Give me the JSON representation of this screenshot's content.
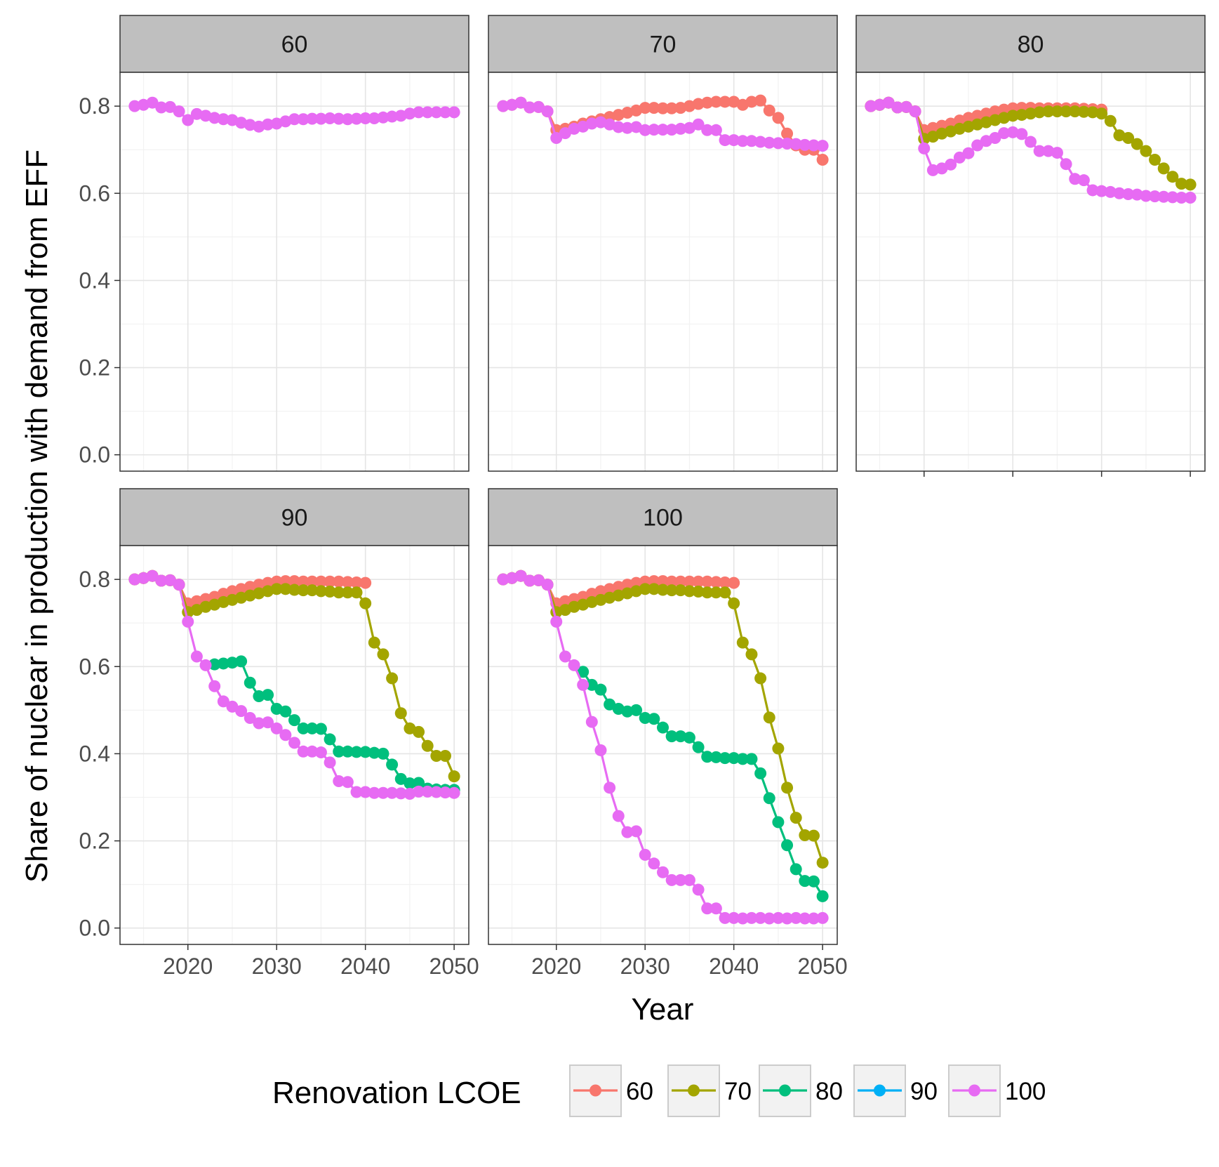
{
  "chart_data": {
    "type": "line",
    "facet_by": "panel",
    "panels": [
      "60",
      "70",
      "80",
      "90",
      "100"
    ],
    "xlabel": "Year",
    "ylabel": "Share of nuclear in production with demand from EFF",
    "xlim": [
      2014,
      2050
    ],
    "ylim": [
      0.0,
      0.8
    ],
    "xticks": [
      "2020",
      "2030",
      "2040",
      "2050"
    ],
    "yticks": [
      "0.0",
      "0.2",
      "0.4",
      "0.6",
      "0.8"
    ],
    "grid": true,
    "legend": {
      "title": "Renovation LCOE",
      "position": "bottom",
      "entries": [
        "60",
        "70",
        "80",
        "90",
        "100"
      ]
    },
    "colors": {
      "60": "#F8766D",
      "70": "#A3A500",
      "80": "#00BF7D",
      "90": "#00B0F6",
      "100": "#E76BF3"
    },
    "years": [
      2014,
      2015,
      2016,
      2017,
      2018,
      2019,
      2020,
      2021,
      2022,
      2023,
      2024,
      2025,
      2026,
      2027,
      2028,
      2029,
      2030,
      2031,
      2032,
      2033,
      2034,
      2035,
      2036,
      2037,
      2038,
      2039,
      2040,
      2041,
      2042,
      2043,
      2044,
      2045,
      2046,
      2047,
      2048,
      2049,
      2050
    ],
    "facets": [
      {
        "panel": "60",
        "series": [
          {
            "name": "100",
            "values": [
              0.8,
              0.803,
              0.808,
              0.797,
              0.798,
              0.788,
              0.768,
              0.782,
              0.778,
              0.773,
              0.77,
              0.768,
              0.762,
              0.757,
              0.753,
              0.758,
              0.76,
              0.765,
              0.77,
              0.77,
              0.771,
              0.771,
              0.772,
              0.771,
              0.77,
              0.771,
              0.772,
              0.772,
              0.774,
              0.776,
              0.778,
              0.783,
              0.786,
              0.786,
              0.786,
              0.786,
              0.786
            ]
          }
        ]
      },
      {
        "panel": "70",
        "series": [
          {
            "name": "60",
            "values": [
              0.8,
              0.803,
              0.808,
              0.797,
              0.798,
              0.788,
              0.745,
              0.748,
              0.753,
              0.76,
              0.765,
              0.77,
              0.775,
              0.78,
              0.785,
              0.79,
              0.796,
              0.796,
              0.795,
              0.795,
              0.796,
              0.8,
              0.805,
              0.808,
              0.81,
              0.81,
              0.81,
              0.803,
              0.81,
              0.813,
              0.79,
              0.773,
              0.737,
              0.71,
              0.7,
              0.7,
              0.677
            ]
          },
          {
            "name": "100",
            "values": [
              0.8,
              0.803,
              0.808,
              0.797,
              0.798,
              0.788,
              0.727,
              0.738,
              0.748,
              0.753,
              0.76,
              0.763,
              0.758,
              0.752,
              0.75,
              0.752,
              0.745,
              0.746,
              0.746,
              0.746,
              0.748,
              0.75,
              0.758,
              0.745,
              0.745,
              0.722,
              0.722,
              0.72,
              0.72,
              0.718,
              0.716,
              0.715,
              0.714,
              0.713,
              0.711,
              0.71,
              0.709
            ]
          }
        ]
      },
      {
        "panel": "80",
        "series": [
          {
            "name": "60",
            "values": [
              0.8,
              0.803,
              0.808,
              0.797,
              0.798,
              0.788,
              0.745,
              0.75,
              0.755,
              0.76,
              0.767,
              0.773,
              0.778,
              0.783,
              0.788,
              0.792,
              0.795,
              0.796,
              0.796,
              0.795,
              0.795,
              0.795,
              0.795,
              0.795,
              0.794,
              0.793,
              0.792
            ]
          },
          {
            "name": "70",
            "values": [
              0.8,
              0.803,
              0.808,
              0.797,
              0.798,
              0.788,
              0.725,
              0.73,
              0.737,
              0.742,
              0.748,
              0.753,
              0.758,
              0.763,
              0.768,
              0.773,
              0.778,
              0.78,
              0.783,
              0.786,
              0.788,
              0.788,
              0.788,
              0.788,
              0.787,
              0.786,
              0.783,
              0.766,
              0.733,
              0.727,
              0.713,
              0.697,
              0.677,
              0.657,
              0.638,
              0.622,
              0.62
            ]
          },
          {
            "name": "100",
            "values": [
              0.8,
              0.803,
              0.808,
              0.797,
              0.798,
              0.788,
              0.703,
              0.653,
              0.657,
              0.666,
              0.682,
              0.692,
              0.71,
              0.72,
              0.727,
              0.738,
              0.74,
              0.736,
              0.718,
              0.697,
              0.697,
              0.693,
              0.667,
              0.633,
              0.63,
              0.607,
              0.605,
              0.603,
              0.6,
              0.598,
              0.597,
              0.594,
              0.593,
              0.592,
              0.591,
              0.59,
              0.59
            ]
          }
        ]
      },
      {
        "panel": "90",
        "series": [
          {
            "name": "60",
            "values": [
              0.8,
              0.803,
              0.808,
              0.797,
              0.798,
              0.788,
              0.745,
              0.75,
              0.755,
              0.76,
              0.767,
              0.773,
              0.778,
              0.783,
              0.788,
              0.792,
              0.795,
              0.796,
              0.796,
              0.795,
              0.795,
              0.795,
              0.795,
              0.795,
              0.794,
              0.793,
              0.792
            ]
          },
          {
            "name": "70",
            "values": [
              0.8,
              0.803,
              0.808,
              0.797,
              0.798,
              0.788,
              0.725,
              0.73,
              0.737,
              0.742,
              0.748,
              0.753,
              0.758,
              0.763,
              0.768,
              0.773,
              0.778,
              0.778,
              0.776,
              0.775,
              0.775,
              0.773,
              0.772,
              0.77,
              0.77,
              0.77,
              0.745,
              0.655,
              0.628,
              0.573,
              0.493,
              0.458,
              0.45,
              0.418,
              0.395,
              0.395,
              0.348
            ]
          },
          {
            "name": "80",
            "start": 2023,
            "values": [
              0.605,
              0.607,
              0.609,
              0.612,
              0.563,
              0.532,
              0.535,
              0.503,
              0.497,
              0.477,
              0.458,
              0.458,
              0.457,
              0.433,
              0.405,
              0.405,
              0.404,
              0.404,
              0.402,
              0.4,
              0.375,
              0.342,
              0.332,
              0.333,
              0.32,
              0.318,
              0.317,
              0.317
            ]
          },
          {
            "name": "100",
            "values": [
              0.8,
              0.803,
              0.808,
              0.797,
              0.798,
              0.788,
              0.703,
              0.623,
              0.603,
              0.555,
              0.52,
              0.508,
              0.498,
              0.482,
              0.47,
              0.472,
              0.458,
              0.443,
              0.425,
              0.405,
              0.405,
              0.403,
              0.38,
              0.337,
              0.335,
              0.312,
              0.312,
              0.31,
              0.31,
              0.31,
              0.309,
              0.308,
              0.313,
              0.313,
              0.312,
              0.311,
              0.31
            ]
          }
        ]
      },
      {
        "panel": "100",
        "series": [
          {
            "name": "60",
            "values": [
              0.8,
              0.803,
              0.808,
              0.797,
              0.798,
              0.788,
              0.745,
              0.75,
              0.755,
              0.76,
              0.767,
              0.773,
              0.778,
              0.783,
              0.788,
              0.792,
              0.795,
              0.796,
              0.796,
              0.795,
              0.795,
              0.795,
              0.795,
              0.795,
              0.794,
              0.793,
              0.792
            ]
          },
          {
            "name": "70",
            "values": [
              0.8,
              0.803,
              0.808,
              0.797,
              0.798,
              0.788,
              0.725,
              0.73,
              0.737,
              0.742,
              0.748,
              0.753,
              0.758,
              0.763,
              0.768,
              0.773,
              0.778,
              0.778,
              0.776,
              0.775,
              0.775,
              0.773,
              0.772,
              0.77,
              0.77,
              0.77,
              0.745,
              0.655,
              0.628,
              0.573,
              0.483,
              0.412,
              0.322,
              0.253,
              0.213,
              0.212,
              0.15
            ]
          },
          {
            "name": "80",
            "start": 2023,
            "values": [
              0.588,
              0.558,
              0.547,
              0.513,
              0.503,
              0.497,
              0.5,
              0.482,
              0.48,
              0.46,
              0.44,
              0.44,
              0.437,
              0.415,
              0.393,
              0.392,
              0.39,
              0.39,
              0.388,
              0.388,
              0.355,
              0.298,
              0.243,
              0.19,
              0.135,
              0.108,
              0.107,
              0.073
            ]
          },
          {
            "name": "100",
            "values": [
              0.8,
              0.803,
              0.808,
              0.797,
              0.798,
              0.788,
              0.703,
              0.623,
              0.603,
              0.558,
              0.473,
              0.408,
              0.322,
              0.257,
              0.22,
              0.222,
              0.168,
              0.148,
              0.128,
              0.11,
              0.11,
              0.11,
              0.088,
              0.045,
              0.045,
              0.023,
              0.023,
              0.022,
              0.023,
              0.023,
              0.022,
              0.023,
              0.022,
              0.023,
              0.022,
              0.022,
              0.023
            ]
          }
        ]
      }
    ]
  }
}
